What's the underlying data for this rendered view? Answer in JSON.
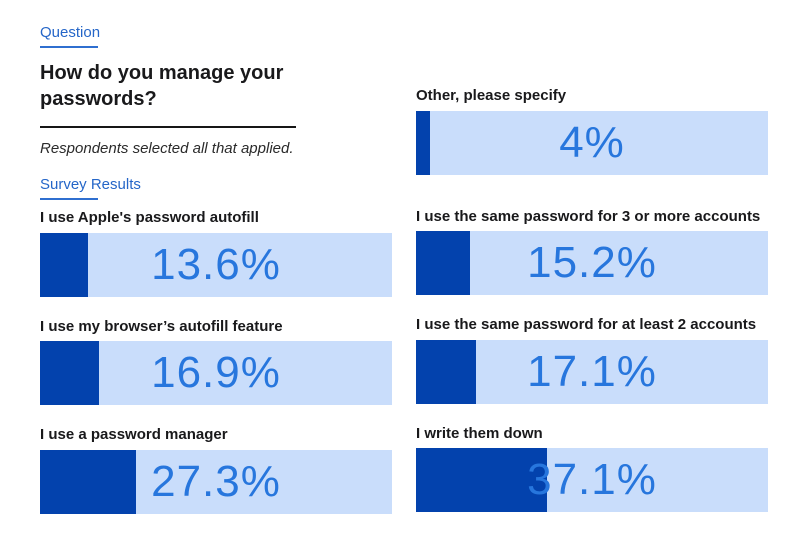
{
  "header": {
    "question_eyebrow": "Question",
    "title_line1": "How do you manage your",
    "title_line2": "passwords?",
    "note": "Respondents selected all that applied.",
    "results_eyebrow": "Survey Results"
  },
  "colors": {
    "accent_link_blue": "#2566c8",
    "bar_fill_dark_blue": "#0342ad",
    "bar_track_light_blue": "#c9ddfb",
    "value_text_blue": "#2776dd",
    "text_dark": "#19191b"
  },
  "chart_data": {
    "type": "bar",
    "orientation": "horizontal",
    "title": "How do you manage your passwords?",
    "subtitle": "Respondents selected all that applied.",
    "unit": "%",
    "xlim": [
      0,
      100
    ],
    "value_label_position": "inside-center",
    "legend": "none",
    "grid": false,
    "items": [
      {
        "label": "I use Apple's password autofill",
        "value": 13.6,
        "display": "13.6%",
        "column": "left"
      },
      {
        "label": "I use my browser’s autofill feature",
        "value": 16.9,
        "display": "16.9%",
        "column": "left"
      },
      {
        "label": "I use a password manager",
        "value": 27.3,
        "display": "27.3%",
        "column": "left"
      },
      {
        "label": "Other, please specify",
        "value": 4,
        "display": "4%",
        "column": "right"
      },
      {
        "label": "I use the same password for 3 or more accounts",
        "value": 15.2,
        "display": "15.2%",
        "column": "right"
      },
      {
        "label": "I use the same password for at least 2 accounts",
        "value": 17.1,
        "display": "17.1%",
        "column": "right"
      },
      {
        "label": "I write them down",
        "value": 37.1,
        "display": "37.1%",
        "column": "right"
      }
    ]
  }
}
